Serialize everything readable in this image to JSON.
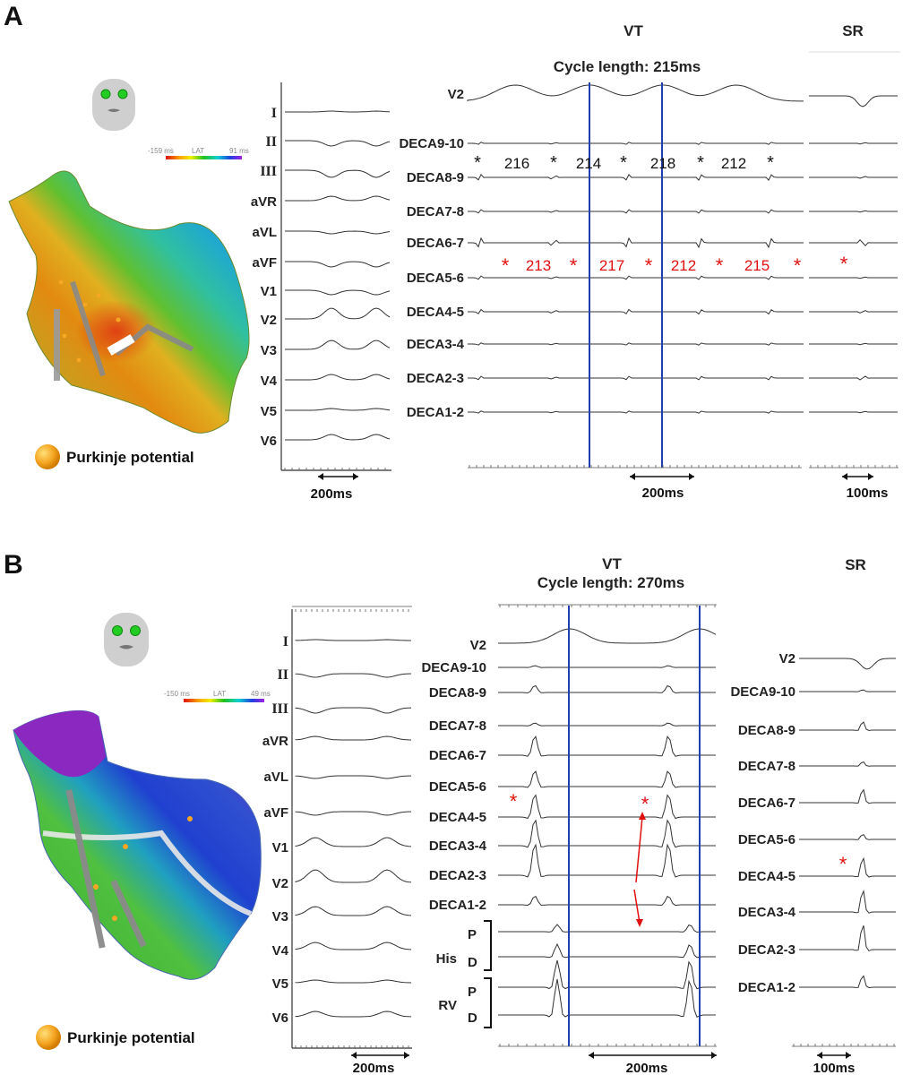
{
  "panels": [
    {
      "id": "A",
      "letter": "A",
      "vt_heading": "VT",
      "sr_heading": "SR",
      "cycle_length": "Cycle length: 215ms",
      "lat_min": "-159 ms",
      "lat_mid": "LAT",
      "lat_max": "91 ms",
      "legend": "Purkinje potential",
      "surface_leads": [
        "I",
        "II",
        "III",
        "aVR",
        "aVL",
        "aVF",
        "V1",
        "V2",
        "V3",
        "V4",
        "V5",
        "V6"
      ],
      "vt_leads": [
        "V2",
        "DECA9-10",
        "DECA8-9",
        "DECA7-8",
        "DECA6-7",
        "DECA5-6",
        "DECA4-5",
        "DECA3-4",
        "DECA2-3",
        "DECA1-2"
      ],
      "black_intervals": [
        "216",
        "214",
        "218",
        "212"
      ],
      "red_intervals": [
        "213",
        "217",
        "212",
        "215"
      ],
      "scale_surface": "200ms",
      "scale_vt": "200ms",
      "scale_sr": "100ms"
    },
    {
      "id": "B",
      "letter": "B",
      "vt_heading": "VT",
      "sr_heading": "SR",
      "cycle_length": "Cycle length: 270ms",
      "lat_min": "-150 ms",
      "lat_mid": "LAT",
      "lat_max": "49 ms",
      "legend": "Purkinje potential",
      "surface_leads": [
        "I",
        "II",
        "III",
        "aVR",
        "aVL",
        "aVF",
        "V1",
        "V2",
        "V3",
        "V4",
        "V5",
        "V6"
      ],
      "vt_leads": [
        "V2",
        "DECA9-10",
        "DECA8-9",
        "DECA7-8",
        "DECA6-7",
        "DECA5-6",
        "DECA4-5",
        "DECA3-4",
        "DECA2-3",
        "DECA1-2"
      ],
      "his_label": "His",
      "rv_label": "RV",
      "p_label": "P",
      "d_label": "D",
      "sr_leads": [
        "V2",
        "DECA9-10",
        "DECA8-9",
        "DECA7-8",
        "DECA6-7",
        "DECA5-6",
        "DECA4-5",
        "DECA3-4",
        "DECA2-3",
        "DECA1-2"
      ],
      "scale_surface": "200ms",
      "scale_vt": "200ms",
      "scale_sr": "100ms"
    }
  ],
  "colors": {
    "annotation_red": "#e01010",
    "vertical_marker_blue": "#1f3fb0",
    "purkinje_orange": "#f5a623",
    "trace_gray": "#333333"
  },
  "icons": {
    "head_icon": "face-orientation-icon",
    "legend_icon": "orange-sphere-icon"
  }
}
